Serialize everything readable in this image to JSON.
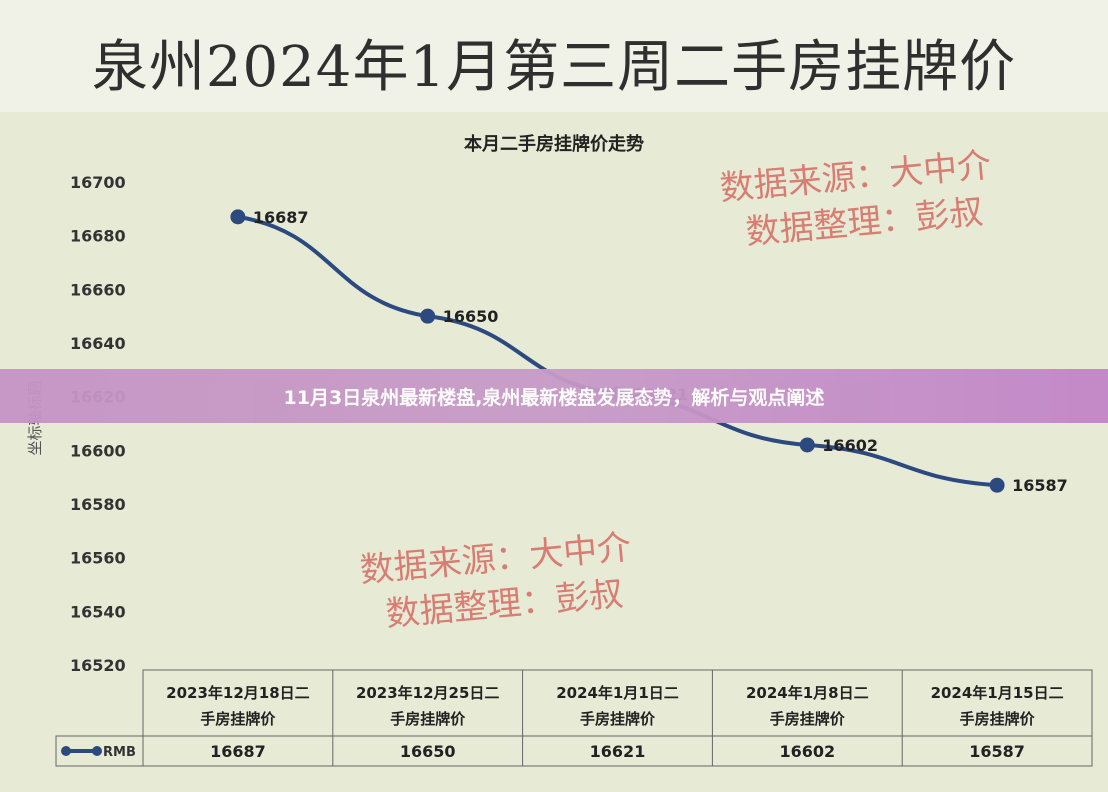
{
  "page_title": "泉州2024年1月第三周二手房挂牌价",
  "overlay": {
    "headline": "11月3日泉州最新楼盘,泉州最新楼盘发展态势，解析与观点阐述"
  },
  "watermarks": [
    {
      "line1": "数据来源：大中介",
      "line2": "数据整理：彭叔"
    },
    {
      "line1": "数据来源：大中介",
      "line2": "数据整理：彭叔"
    }
  ],
  "colors": {
    "line": "#2c4a7f",
    "marker": "#2c4a7f",
    "watermark": "#d87d73",
    "banner": "#c593c4",
    "background": "#e7ebd6"
  },
  "chart_data": {
    "type": "line",
    "title": "本月二手房挂牌价走势",
    "ylabel": "坐标轴标题",
    "xlabel": "",
    "ylim": [
      16520,
      16700
    ],
    "yticks": [
      "16700",
      "16680",
      "16660",
      "16640",
      "16620",
      "16600",
      "16580",
      "16560",
      "16540",
      "16520"
    ],
    "categories": [
      "2023年12月18日二手房挂牌价",
      "2023年12月25日二手房挂牌价",
      "2024年1月1日二手房挂牌价",
      "2024年1月8日二手房挂牌价",
      "2024年1月15日二手房挂牌价"
    ],
    "series": [
      {
        "name": "RMB",
        "values": [
          16687,
          16650,
          16621,
          16602,
          16587
        ]
      }
    ],
    "data_labels": [
      "16687",
      "16650",
      "16621",
      "16602",
      "16587"
    ],
    "grid": false,
    "data_table": true
  }
}
